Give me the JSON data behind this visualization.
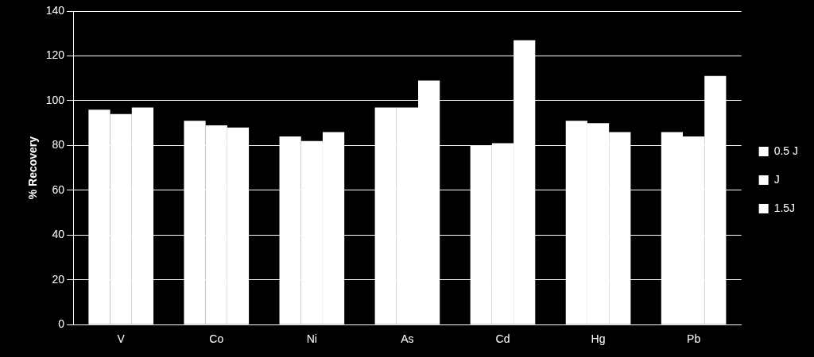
{
  "chart_data": {
    "type": "bar",
    "ylabel": "% Recovery",
    "categories": [
      "V",
      "Co",
      "Ni",
      "As",
      "Cd",
      "Hg",
      "Pb"
    ],
    "series": [
      {
        "name": "0.5 J",
        "color": "#ffffff",
        "values": [
          96,
          91,
          84,
          97,
          80,
          91,
          86
        ]
      },
      {
        "name": "J",
        "color": "#ffffff",
        "values": [
          94,
          89,
          82,
          97,
          81,
          90,
          84
        ]
      },
      {
        "name": "1.5J",
        "color": "#ffffff",
        "values": [
          97,
          88,
          86,
          109,
          127,
          86,
          111
        ]
      }
    ],
    "ylim": [
      0,
      140
    ],
    "yticks": [
      0,
      20,
      40,
      60,
      80,
      100,
      120,
      140
    ],
    "grid": "y",
    "legend": "right"
  }
}
